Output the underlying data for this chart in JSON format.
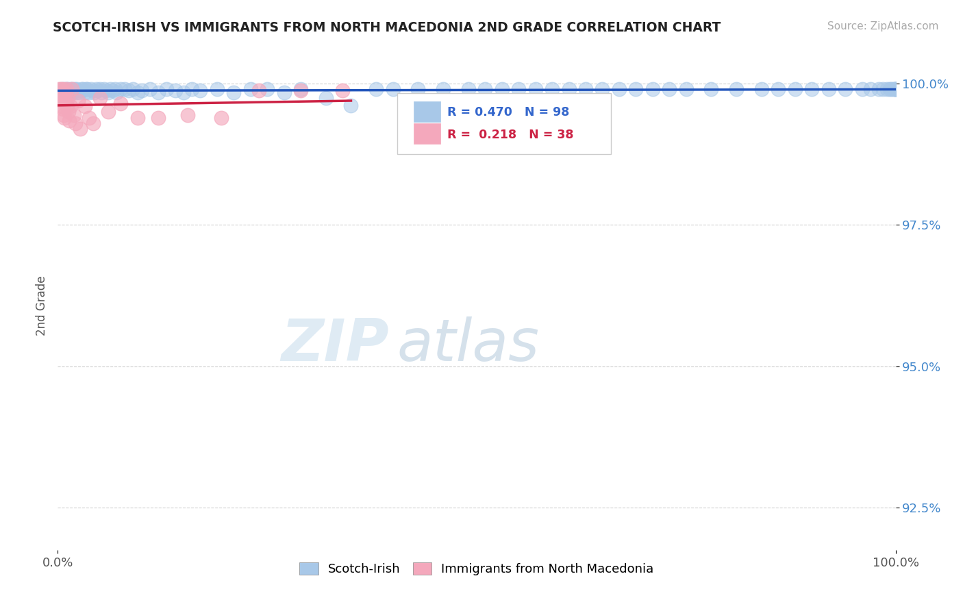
{
  "title": "SCOTCH-IRISH VS IMMIGRANTS FROM NORTH MACEDONIA 2ND GRADE CORRELATION CHART",
  "source_text": "Source: ZipAtlas.com",
  "ylabel": "2nd Grade",
  "xmin": 0.0,
  "xmax": 1.0,
  "ymin": 0.9175,
  "ymax": 1.004,
  "yticks": [
    0.925,
    0.95,
    0.975,
    1.0
  ],
  "ytick_labels": [
    "92.5%",
    "95.0%",
    "97.5%",
    "100.0%"
  ],
  "xticks": [
    0.0,
    1.0
  ],
  "xtick_labels": [
    "0.0%",
    "100.0%"
  ],
  "blue_color": "#a8c8e8",
  "pink_color": "#f4a8bc",
  "blue_line_color": "#2255bb",
  "pink_line_color": "#cc2244",
  "R_blue": 0.47,
  "N_blue": 98,
  "R_pink": 0.218,
  "N_pink": 38,
  "watermark_zip": "ZIP",
  "watermark_atlas": "atlas",
  "background_color": "#ffffff",
  "grid_color": "#cccccc",
  "blue_x": [
    0.005,
    0.008,
    0.01,
    0.01,
    0.012,
    0.013,
    0.015,
    0.016,
    0.017,
    0.018,
    0.02,
    0.021,
    0.022,
    0.023,
    0.025,
    0.026,
    0.028,
    0.029,
    0.03,
    0.032,
    0.034,
    0.035,
    0.037,
    0.04,
    0.042,
    0.044,
    0.046,
    0.048,
    0.05,
    0.052,
    0.055,
    0.058,
    0.06,
    0.063,
    0.065,
    0.068,
    0.07,
    0.075,
    0.08,
    0.085,
    0.09,
    0.095,
    0.1,
    0.11,
    0.12,
    0.13,
    0.14,
    0.15,
    0.16,
    0.17,
    0.19,
    0.21,
    0.23,
    0.25,
    0.27,
    0.29,
    0.32,
    0.35,
    0.38,
    0.4,
    0.43,
    0.46,
    0.49,
    0.51,
    0.53,
    0.55,
    0.57,
    0.59,
    0.61,
    0.63,
    0.65,
    0.67,
    0.69,
    0.71,
    0.73,
    0.75,
    0.78,
    0.81,
    0.84,
    0.86,
    0.88,
    0.9,
    0.92,
    0.94,
    0.96,
    0.97,
    0.98,
    0.985,
    0.99,
    0.993,
    0.995,
    0.997,
    0.999,
    1.0,
    1.0,
    1.0,
    1.0,
    1.0
  ],
  "blue_y": [
    0.999,
    0.999,
    0.999,
    0.9985,
    0.999,
    0.9988,
    0.999,
    0.9987,
    0.999,
    0.9985,
    0.999,
    0.9988,
    0.9985,
    0.999,
    0.9988,
    0.9985,
    0.999,
    0.9988,
    0.999,
    0.9985,
    0.999,
    0.999,
    0.9985,
    0.999,
    0.9988,
    0.9985,
    0.999,
    0.9988,
    0.999,
    0.9985,
    0.999,
    0.9988,
    0.9985,
    0.999,
    0.9988,
    0.999,
    0.9985,
    0.999,
    0.999,
    0.9988,
    0.999,
    0.9985,
    0.9988,
    0.999,
    0.9985,
    0.999,
    0.9988,
    0.9985,
    0.999,
    0.9988,
    0.999,
    0.9985,
    0.999,
    0.999,
    0.9985,
    0.999,
    0.9975,
    0.9962,
    0.999,
    0.999,
    0.999,
    0.999,
    0.999,
    0.999,
    0.999,
    0.999,
    0.999,
    0.999,
    0.999,
    0.999,
    0.999,
    0.999,
    0.999,
    0.999,
    0.999,
    0.999,
    0.999,
    0.999,
    0.999,
    0.999,
    0.999,
    0.999,
    0.999,
    0.999,
    0.999,
    0.999,
    0.999,
    0.999,
    0.999,
    0.999,
    0.999,
    0.999,
    0.999,
    0.999,
    0.999,
    0.999,
    0.999,
    0.999
  ],
  "pink_x": [
    0.001,
    0.002,
    0.003,
    0.003,
    0.004,
    0.005,
    0.005,
    0.006,
    0.006,
    0.007,
    0.007,
    0.008,
    0.008,
    0.009,
    0.01,
    0.011,
    0.012,
    0.013,
    0.014,
    0.015,
    0.017,
    0.019,
    0.021,
    0.024,
    0.027,
    0.032,
    0.037,
    0.042,
    0.05,
    0.06,
    0.075,
    0.095,
    0.12,
    0.155,
    0.195,
    0.24,
    0.29,
    0.34
  ],
  "pink_y": [
    0.999,
    0.9985,
    0.998,
    0.997,
    0.999,
    0.9975,
    0.996,
    0.999,
    0.9955,
    0.9985,
    0.9945,
    0.998,
    0.994,
    0.997,
    0.999,
    0.996,
    0.9975,
    0.995,
    0.9935,
    0.996,
    0.999,
    0.9945,
    0.993,
    0.997,
    0.992,
    0.996,
    0.994,
    0.993,
    0.9975,
    0.995,
    0.9965,
    0.994,
    0.994,
    0.9945,
    0.994,
    0.9988,
    0.9988,
    0.9988
  ]
}
